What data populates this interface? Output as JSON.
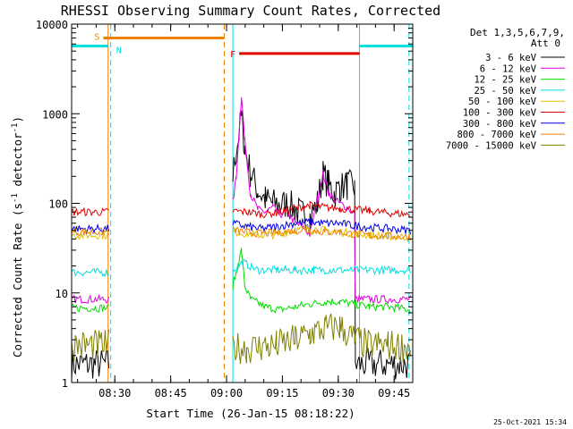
{
  "chart_data": {
    "type": "line",
    "title": "RHESSI Observing Summary Count Rates, Corrected",
    "xlabel": "Start Time (26-Jan-15 08:18:22)",
    "ylabel": "Corrected Count Rate (s",
    "ylabel_sup1": "-1",
    "ylabel_mid": " detector",
    "ylabel_sup2": "-1",
    "ylabel_end": ")",
    "x_unit": "minutes after 08:18:22",
    "xlim": [
      0,
      91.6
    ],
    "ylim": [
      1,
      10000
    ],
    "yscale": "log",
    "x_ticks": [
      {
        "x": 11.6,
        "label": "08:30"
      },
      {
        "x": 26.6,
        "label": "08:45"
      },
      {
        "x": 41.6,
        "label": "09:00"
      },
      {
        "x": 56.6,
        "label": "09:15"
      },
      {
        "x": 71.6,
        "label": "09:30"
      },
      {
        "x": 86.6,
        "label": "09:45"
      }
    ],
    "y_ticks": [
      {
        "y": 1,
        "label": "1"
      },
      {
        "y": 10,
        "label": "10"
      },
      {
        "y": 100,
        "label": "100"
      },
      {
        "y": 1000,
        "label": "1000"
      },
      {
        "y": 10000,
        "label": "10000"
      }
    ],
    "legend": {
      "header1": "Det 1,3,5,6,7,9,",
      "header2": "Att 0",
      "position": "right"
    },
    "series": [
      {
        "name": "3 - 6 keV",
        "color": "#000000",
        "points": [
          [
            0,
            1.6
          ],
          [
            10,
            1.6
          ],
          [
            15,
            null
          ],
          [
            43.2,
            null
          ],
          [
            43.3,
            200
          ],
          [
            44.2,
            380
          ],
          [
            45.6,
            900
          ],
          [
            46.5,
            420
          ],
          [
            48,
            220
          ],
          [
            50,
            140
          ],
          [
            52,
            110
          ],
          [
            54,
            100
          ],
          [
            56,
            95
          ],
          [
            58,
            100
          ],
          [
            60,
            85
          ],
          [
            62,
            75
          ],
          [
            64,
            70
          ],
          [
            66,
            100
          ],
          [
            67.5,
            210
          ],
          [
            69,
            160
          ],
          [
            70.5,
            130
          ],
          [
            72,
            150
          ],
          [
            74,
            160
          ],
          [
            76,
            150
          ],
          [
            76.1,
            20
          ],
          [
            76.2,
            1.6
          ],
          [
            91,
            1.6
          ]
        ]
      },
      {
        "name": "6 - 12 keV",
        "color": "#e000e0",
        "points": [
          [
            0,
            8.5
          ],
          [
            10,
            8.5
          ],
          [
            15,
            null
          ],
          [
            43.2,
            null
          ],
          [
            43.3,
            100
          ],
          [
            44.2,
            200
          ],
          [
            45.6,
            1600
          ],
          [
            46.5,
            500
          ],
          [
            48,
            130
          ],
          [
            50,
            85
          ],
          [
            52,
            80
          ],
          [
            54,
            90
          ],
          [
            56,
            75
          ],
          [
            58,
            80
          ],
          [
            60,
            60
          ],
          [
            62,
            55
          ],
          [
            64,
            45
          ],
          [
            66,
            110
          ],
          [
            67.5,
            220
          ],
          [
            69,
            130
          ],
          [
            70.5,
            110
          ],
          [
            72,
            100
          ],
          [
            74,
            90
          ],
          [
            76,
            75
          ],
          [
            76.1,
            15
          ],
          [
            76.2,
            8.5
          ],
          [
            91,
            8.5
          ]
        ]
      },
      {
        "name": "12 - 25 keV",
        "color": "#00dd00",
        "points": [
          [
            0,
            6.8
          ],
          [
            10,
            6.8
          ],
          [
            15,
            null
          ],
          [
            43.2,
            null
          ],
          [
            43.3,
            12
          ],
          [
            44.2,
            17
          ],
          [
            45.6,
            30
          ],
          [
            46.5,
            12
          ],
          [
            48,
            8.5
          ],
          [
            52,
            7
          ],
          [
            56,
            6.5
          ],
          [
            60,
            7
          ],
          [
            64,
            7.5
          ],
          [
            68,
            8
          ],
          [
            72,
            8
          ],
          [
            76,
            7.5
          ],
          [
            80,
            7
          ],
          [
            85,
            7
          ],
          [
            91,
            6.5
          ]
        ]
      },
      {
        "name": "25 - 50 keV",
        "color": "#00e0e0",
        "points": [
          [
            0,
            17
          ],
          [
            10,
            17
          ],
          [
            15,
            null
          ],
          [
            43.2,
            null
          ],
          [
            43.3,
            18
          ],
          [
            46,
            22
          ],
          [
            50,
            18
          ],
          [
            55,
            18
          ],
          [
            60,
            18
          ],
          [
            65,
            18
          ],
          [
            70,
            18
          ],
          [
            75,
            18
          ],
          [
            80,
            18
          ],
          [
            85,
            18
          ],
          [
            91,
            18
          ]
        ]
      },
      {
        "name": "50 - 100 keV",
        "color": "#e0c000",
        "points": [
          [
            0,
            44
          ],
          [
            10,
            44
          ],
          [
            15,
            null
          ],
          [
            43.2,
            null
          ],
          [
            43.3,
            48
          ],
          [
            47,
            46
          ],
          [
            51,
            44
          ],
          [
            55,
            45
          ],
          [
            60,
            50
          ],
          [
            64,
            52
          ],
          [
            68,
            50
          ],
          [
            72,
            48
          ],
          [
            76,
            46
          ],
          [
            80,
            44
          ],
          [
            85,
            43
          ],
          [
            91,
            42
          ]
        ]
      },
      {
        "name": "100 - 300 keV",
        "color": "#e00000",
        "points": [
          [
            0,
            80
          ],
          [
            10,
            80
          ],
          [
            15,
            null
          ],
          [
            43.2,
            null
          ],
          [
            43.3,
            82
          ],
          [
            47,
            80
          ],
          [
            51,
            76
          ],
          [
            55,
            78
          ],
          [
            60,
            88
          ],
          [
            64,
            95
          ],
          [
            68,
            90
          ],
          [
            72,
            88
          ],
          [
            76,
            85
          ],
          [
            80,
            82
          ],
          [
            85,
            78
          ],
          [
            91,
            75
          ]
        ]
      },
      {
        "name": "300 - 800 keV",
        "color": "#0000e0",
        "points": [
          [
            0,
            52
          ],
          [
            10,
            52
          ],
          [
            15,
            null
          ],
          [
            43.2,
            null
          ],
          [
            43.3,
            60
          ],
          [
            47,
            55
          ],
          [
            51,
            52
          ],
          [
            55,
            55
          ],
          [
            60,
            60
          ],
          [
            64,
            62
          ],
          [
            68,
            60
          ],
          [
            72,
            60
          ],
          [
            76,
            56
          ],
          [
            80,
            54
          ],
          [
            85,
            52
          ],
          [
            91,
            50
          ]
        ]
      },
      {
        "name": "800 - 7000 keV",
        "color": "#f08000",
        "points": [
          [
            0,
            48
          ],
          [
            10,
            48
          ],
          [
            15,
            null
          ],
          [
            43.2,
            null
          ],
          [
            43.3,
            50
          ],
          [
            47,
            48
          ],
          [
            51,
            46
          ],
          [
            55,
            47
          ],
          [
            60,
            50
          ],
          [
            64,
            50
          ],
          [
            68,
            48
          ],
          [
            72,
            48
          ],
          [
            76,
            45
          ],
          [
            80,
            44
          ],
          [
            85,
            43
          ],
          [
            91,
            42
          ]
        ]
      },
      {
        "name": "7000 - 15000 keV",
        "color": "#808000",
        "points": [
          [
            0,
            2.6
          ],
          [
            10,
            2.6
          ],
          [
            15,
            null
          ],
          [
            43.2,
            null
          ],
          [
            43.3,
            2.5
          ],
          [
            47,
            2.4
          ],
          [
            51,
            2.5
          ],
          [
            55,
            2.6
          ],
          [
            60,
            3
          ],
          [
            64,
            3.5
          ],
          [
            68,
            4
          ],
          [
            72,
            4.2
          ],
          [
            76,
            3
          ],
          [
            80,
            2.6
          ],
          [
            85,
            2.6
          ],
          [
            91,
            2.5
          ]
        ]
      }
    ],
    "annotations": {
      "saa": {
        "label": "S",
        "color": "#f08000",
        "start": 8.5,
        "end": 41.0,
        "level": 7000
      },
      "night": {
        "label": "N",
        "color": "#00e0e0",
        "segments": [
          [
            0,
            9.8
          ],
          [
            77.3,
            91.6
          ]
        ],
        "level": 5700
      },
      "flare": {
        "label": "F",
        "color": "#e00000",
        "start": 45.0,
        "end": 77.3,
        "level": 4700
      },
      "vlines": [
        {
          "x": 9.8,
          "color": "#f08000",
          "dashed": false
        },
        {
          "x": 10.5,
          "color": "#00e0e0",
          "dashed": true
        },
        {
          "x": 41.0,
          "color": "#f08000",
          "dashed": true
        },
        {
          "x": 43.3,
          "color": "#00e0e0",
          "dashed": false
        },
        {
          "x": 77.3,
          "color": "#00e0e0",
          "dashed": false
        },
        {
          "x": 90.6,
          "color": "#00e0e0",
          "dashed": true
        }
      ]
    },
    "footer_date": "25-Oct-2021 15:34",
    "grid": false
  }
}
